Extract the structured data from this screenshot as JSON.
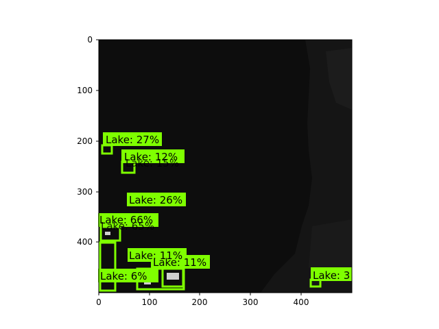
{
  "image": {
    "description_free": true,
    "background_color": "#0d0d0d",
    "overlay_color": "#7fff00",
    "x_ticks": [
      "0",
      "100",
      "200",
      "300",
      "400"
    ],
    "y_ticks": [
      "0",
      "100",
      "200",
      "300",
      "400"
    ]
  },
  "detections": [
    {
      "label": "Lake: 27%"
    },
    {
      "label": "Lake: 12%"
    },
    {
      "label": "Lake: 15%"
    },
    {
      "label": "Lake: 26%"
    },
    {
      "label": "Lake: 66%"
    },
    {
      "label": "Lake: 65%"
    },
    {
      "label": "Lake: 11%"
    },
    {
      "label": "Lake: 11%"
    },
    {
      "label": "Lake: 6%"
    },
    {
      "label": "Lake: 3"
    }
  ]
}
